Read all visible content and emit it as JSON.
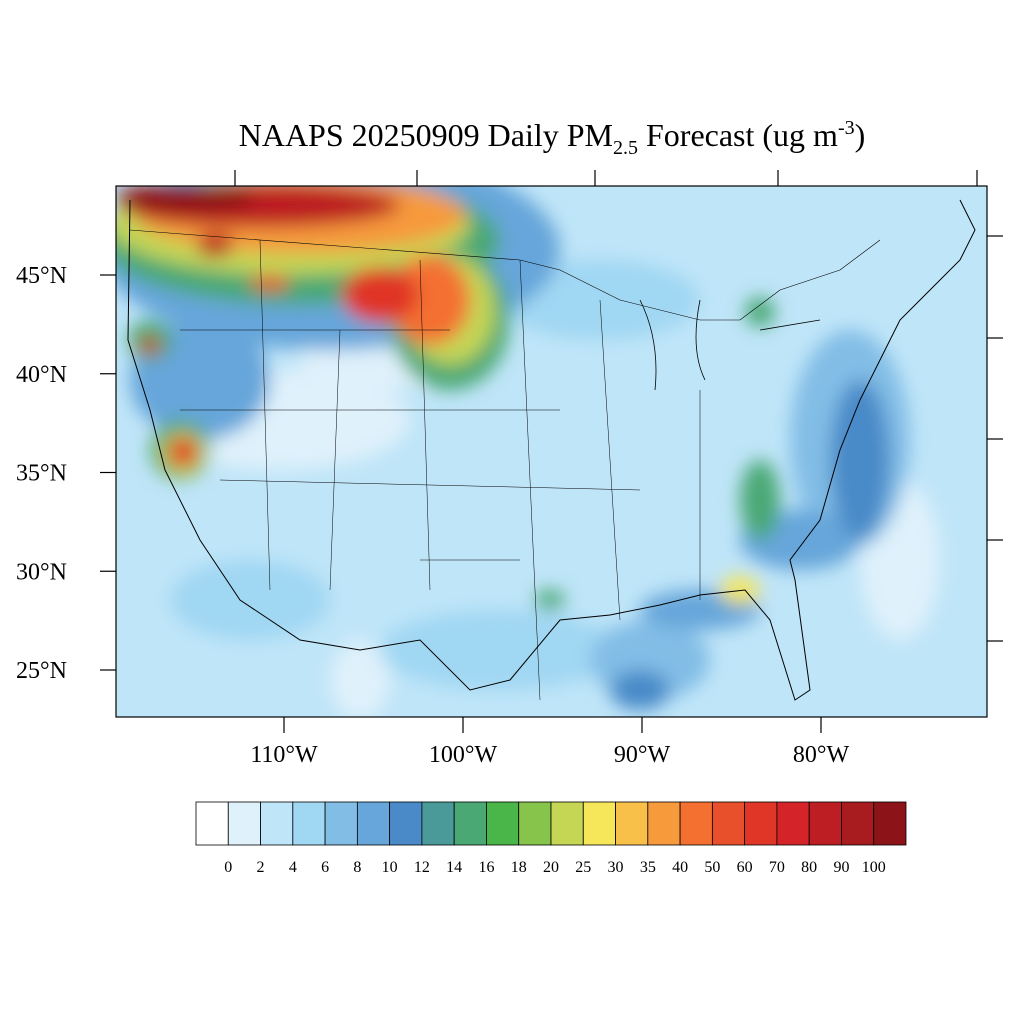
{
  "chart_data": {
    "type": "map",
    "title": {
      "main": "NAAPS 20250909 Daily PM",
      "subscript": "2.5",
      "rest": " Forecast (ug m",
      "superscript": "-3",
      "end": ")"
    },
    "lat_ticks": [
      {
        "value": 45,
        "label": "45°N"
      },
      {
        "value": 40,
        "label": "40°N"
      },
      {
        "value": 35,
        "label": "35°N"
      },
      {
        "value": 30,
        "label": "30°N"
      },
      {
        "value": 25,
        "label": "25°N"
      }
    ],
    "lon_ticks": [
      {
        "value": -110,
        "label": "110°W"
      },
      {
        "value": -100,
        "label": "100°W"
      },
      {
        "value": -90,
        "label": "90°W"
      },
      {
        "value": -80,
        "label": "80°W"
      }
    ],
    "colorbar": {
      "levels": [
        0,
        2,
        4,
        6,
        8,
        10,
        12,
        14,
        16,
        18,
        20,
        25,
        30,
        35,
        40,
        50,
        60,
        70,
        80,
        90,
        100
      ],
      "colors": [
        "#ffffff",
        "#dff1fb",
        "#bfe5f8",
        "#a0d7f3",
        "#82bde6",
        "#66a6da",
        "#4a8ac8",
        "#4a9a9a",
        "#4aa874",
        "#4ab548",
        "#86c44c",
        "#c4d654",
        "#f6e65a",
        "#f8c048",
        "#f69a3c",
        "#f47030",
        "#e8502c",
        "#e03628",
        "#d4242a",
        "#bc1e24",
        "#a81c20",
        "#8c1418"
      ]
    }
  }
}
